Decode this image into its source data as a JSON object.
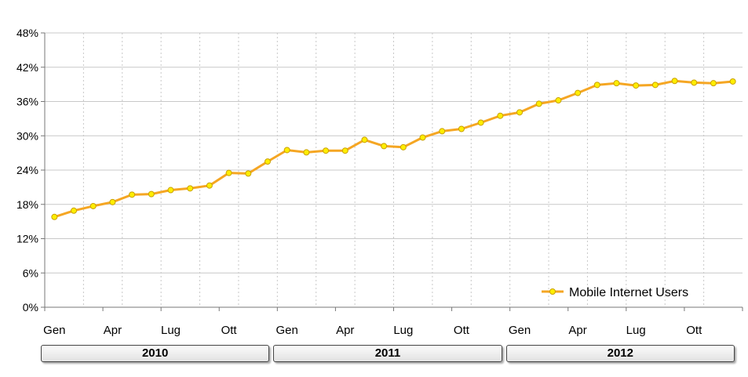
{
  "chart_data": {
    "type": "line",
    "title": "",
    "xlabel": "",
    "ylabel": "",
    "ylim": [
      0,
      48
    ],
    "y_ticks": [
      "0%",
      "6%",
      "12%",
      "18%",
      "24%",
      "30%",
      "36%",
      "42%",
      "48%"
    ],
    "grid": "horizontal solid, vertical dotted",
    "legend_position": "bottom-right",
    "x_tick_labels": [
      "Gen",
      "Apr",
      "Lug",
      "Ott",
      "Gen",
      "Apr",
      "Lug",
      "Ott",
      "Gen",
      "Apr",
      "Lug",
      "Ott"
    ],
    "years": [
      "2010",
      "2011",
      "2012"
    ],
    "series": [
      {
        "name": "Mobile Internet Users",
        "color": "#f5a623",
        "marker_color": "#ffee00",
        "values": [
          15.8,
          16.9,
          17.7,
          18.4,
          19.7,
          19.8,
          20.5,
          20.8,
          21.3,
          23.5,
          23.4,
          25.5,
          27.5,
          27.1,
          27.4,
          27.4,
          29.3,
          28.2,
          28.0,
          29.7,
          30.8,
          31.2,
          32.3,
          33.5,
          34.1,
          35.6,
          36.2,
          37.5,
          38.9,
          39.2,
          38.8,
          38.9,
          39.6,
          39.3,
          39.2,
          39.5
        ]
      }
    ]
  }
}
